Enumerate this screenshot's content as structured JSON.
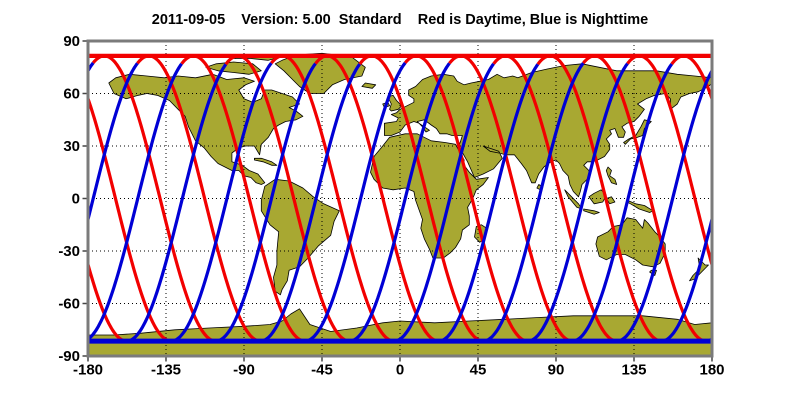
{
  "chart_data": {
    "type": "line",
    "title": "2011-09-05    Version: 5.00  Standard    Red is Daytime, Blue is Nighttime",
    "date": "2011-09-05",
    "version": "5.00",
    "mode": "Standard",
    "x_ticks": [
      -180,
      -135,
      -90,
      -45,
      0,
      45,
      90,
      135,
      180
    ],
    "y_ticks": [
      90,
      60,
      30,
      0,
      -30,
      -60,
      -90
    ],
    "xlim": [
      -180,
      180
    ],
    "ylim": [
      -90,
      90
    ],
    "grid": true,
    "legend": {
      "red_label": "Red is Daytime",
      "blue_label": "Blue is Nighttime",
      "position": "in-title"
    },
    "series": [
      {
        "name": "daytime-ground-track",
        "meaning": "Daytime satellite passes",
        "color": "#f20000"
      },
      {
        "name": "nighttime-ground-track",
        "meaning": "Nighttime satellite passes",
        "color": "#0000d5"
      }
    ],
    "ground_track_model": {
      "max_latitude_deg": 81.5,
      "polar_band_latitude_deg": 81.5,
      "sinusoid_period_lon_deg": 128.571,
      "num_curves": 5,
      "curve_lon_offset_deg": 25.714,
      "first_ascending_node_lon_deg": 3,
      "day_phase_range_deg": [
        70,
        265
      ]
    },
    "basemap": "world-equirectangular"
  },
  "colors": {
    "land": "#a8a832",
    "land_outline": "#000000",
    "ocean": "#ffffff",
    "frame": "#7b7b7b",
    "grid": "#000000",
    "tick": "#444444",
    "text": "#000000",
    "day_track": "#f20000",
    "night_track": "#0000d5"
  }
}
